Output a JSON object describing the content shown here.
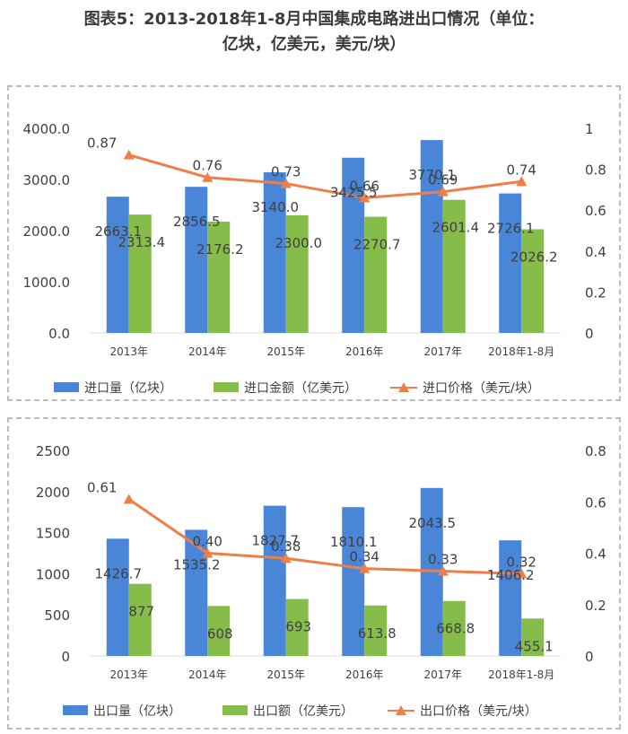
{
  "title": {
    "line1": "图表5：2013-2018年1-8月中国集成电路进出口情况（单位：",
    "line2": "亿块，亿美元，美元/块）"
  },
  "colors": {
    "bar1": "#4a86d8",
    "bar2": "#86bd4a",
    "line": "#ee7e4a",
    "grid": "#d9d9d9",
    "text": "#404040"
  },
  "chart_data": [
    {
      "type": "bar",
      "categories": [
        "2013年",
        "2014年",
        "2015年",
        "2016年",
        "2017年",
        "2018年1-8月"
      ],
      "series": [
        {
          "name": "进口量（亿块）",
          "kind": "bar",
          "axis": "left",
          "values": [
            2663.1,
            2856.5,
            3140.0,
            3425.5,
            3770.1,
            2726.1
          ],
          "labels": [
            "2663.1",
            "2856.5",
            "3140.0",
            "3425.5",
            "3770.1",
            "2726.1"
          ]
        },
        {
          "name": "进口金额（亿美元）",
          "kind": "bar",
          "axis": "left",
          "values": [
            2313.4,
            2176.2,
            2300.0,
            2270.7,
            2601.4,
            2026.2
          ],
          "labels": [
            "2313.4",
            "2176.2",
            "2300.0",
            "2270.7",
            "2601.4",
            "2026.2"
          ]
        },
        {
          "name": "进口价格（美元/块）",
          "kind": "line",
          "axis": "right",
          "values": [
            0.87,
            0.76,
            0.73,
            0.66,
            0.69,
            0.74
          ],
          "labels": [
            "0.87",
            "0.76",
            "0.73",
            "0.66",
            "0.69",
            "0.74"
          ]
        }
      ],
      "ylim_left": [
        0,
        4000
      ],
      "yticks_left": [
        "0.0",
        "1000.0",
        "2000.0",
        "3000.0",
        "4000.0"
      ],
      "ylim_right": [
        0,
        1
      ],
      "yticks_right": [
        "0",
        "0.2",
        "0.4",
        "0.6",
        "0.8",
        "1"
      ],
      "legend": "bottom",
      "grid": false
    },
    {
      "type": "bar",
      "categories": [
        "2013年",
        "2014年",
        "2015年",
        "2016年",
        "2017年",
        "2018年1-8月"
      ],
      "series": [
        {
          "name": "出口量（亿块）",
          "kind": "bar",
          "axis": "left",
          "values": [
            1426.7,
            1535.2,
            1827.7,
            1810.1,
            2043.5,
            1406.2
          ],
          "labels": [
            "1426.7",
            "1535.2",
            "1827.7",
            "1810.1",
            "2043.5",
            "1406.2"
          ]
        },
        {
          "name": "出口额（亿美元）",
          "kind": "bar",
          "axis": "left",
          "values": [
            877,
            608,
            693,
            613.8,
            668.8,
            455.1
          ],
          "labels": [
            "877",
            "608",
            "693",
            "613.8",
            "668.8",
            "455.1"
          ]
        },
        {
          "name": "出口价格（美元/块）",
          "kind": "line",
          "axis": "right",
          "values": [
            0.61,
            0.4,
            0.38,
            0.34,
            0.33,
            0.32
          ],
          "labels": [
            "0.61",
            "0.40",
            "0.38",
            "0.34",
            "0.33",
            "0.32"
          ]
        }
      ],
      "ylim_left": [
        0,
        2500
      ],
      "yticks_left": [
        "0",
        "500",
        "1000",
        "1500",
        "2000",
        "2500"
      ],
      "ylim_right": [
        0,
        0.8
      ],
      "yticks_right": [
        "0",
        "0.2",
        "0.4",
        "0.6",
        "0.8"
      ],
      "legend": "bottom",
      "grid": false
    }
  ]
}
